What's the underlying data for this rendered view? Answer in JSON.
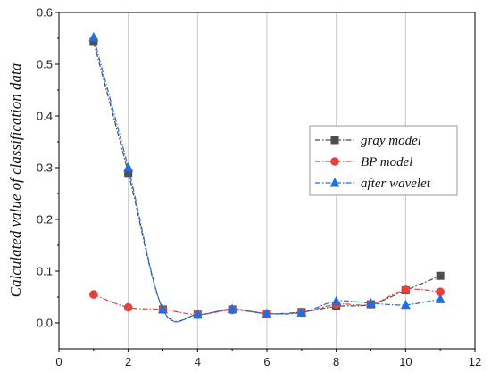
{
  "chart_data": {
    "type": "line",
    "title": "",
    "xlabel": "",
    "ylabel": "Calculated value of classification data",
    "xlim": [
      0,
      12
    ],
    "ylim": [
      -0.05,
      0.6
    ],
    "xticks": [
      0,
      2,
      4,
      6,
      8,
      10,
      12
    ],
    "yticks": [
      0.0,
      0.1,
      0.2,
      0.3,
      0.4,
      0.5,
      0.6
    ],
    "xtick_labels": [
      "0",
      "2",
      "4",
      "6",
      "8",
      "10",
      "12"
    ],
    "ytick_labels": [
      "0.0",
      "0.1",
      "0.2",
      "0.3",
      "0.4",
      "0.5",
      "0.6"
    ],
    "grid": "vertical",
    "legend_position": "right",
    "x": [
      1,
      2,
      3,
      4,
      5,
      6,
      7,
      8,
      9,
      10,
      11
    ],
    "series": [
      {
        "name": "gray model",
        "values": [
          0.543,
          0.29,
          0.026,
          0.016,
          0.026,
          0.018,
          0.021,
          0.032,
          0.036,
          0.063,
          0.091
        ],
        "color": "#4d4d4d",
        "marker": "square",
        "line": "dash-dot"
      },
      {
        "name": "BP model",
        "values": [
          0.055,
          0.03,
          0.026,
          0.016,
          0.025,
          0.018,
          0.02,
          0.036,
          0.036,
          0.064,
          0.06
        ],
        "color": "#e8403c",
        "marker": "circle",
        "line": "dash-dot"
      },
      {
        "name": "after wavelet",
        "values": [
          0.552,
          0.3,
          0.026,
          0.016,
          0.027,
          0.018,
          0.02,
          0.042,
          0.038,
          0.035,
          0.046
        ],
        "color": "#1f6fe0",
        "marker": "triangle",
        "line": "dash-dot"
      }
    ]
  }
}
